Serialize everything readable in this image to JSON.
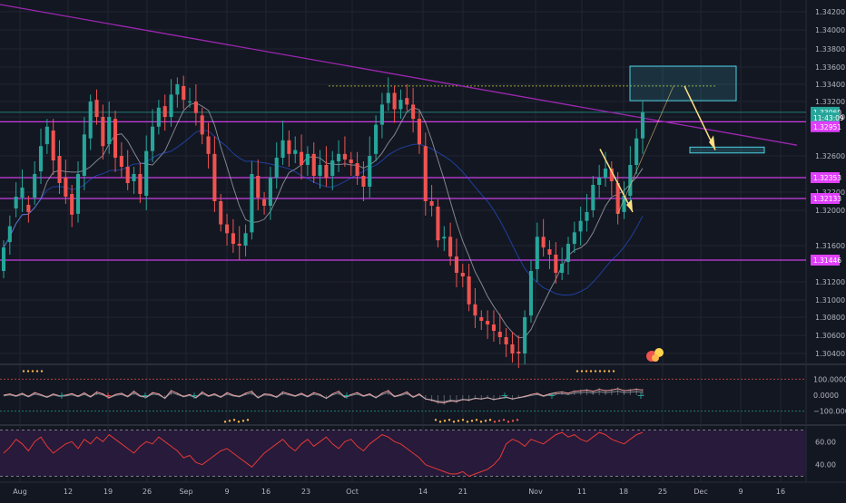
{
  "colors": {
    "bg": "#131722",
    "grid": "#1f2433",
    "up": "#26a69a",
    "down": "#ef5350",
    "text": "#b2b5be",
    "magenta": "#e040fb",
    "trend": "#9c27b0",
    "zone": "#4dd0e1",
    "arrow": "#ffe082",
    "price_tag": "#26a69a",
    "rsi_line": "#e53935",
    "rsi_bg": "#2a1b3d"
  },
  "time_axis": {
    "labels": [
      "Aug",
      "12",
      "19",
      "26",
      "Sep",
      "9",
      "16",
      "23",
      "Oct",
      "14",
      "21",
      "Nov",
      "11",
      "18",
      "25",
      "Dec",
      "9",
      "16"
    ]
  },
  "chart_data": [
    {
      "type": "candlestick",
      "title": "",
      "y_ticks": [
        "1.34200",
        "1.34000",
        "1.33800",
        "1.33600",
        "1.33400",
        "1.33200",
        "1.33000",
        "1.32600",
        "1.32200",
        "1.32000",
        "1.31600",
        "1.31200",
        "1.31000",
        "1.30800",
        "1.30600",
        "1.30400"
      ],
      "ylim": [
        1.3025,
        1.3434
      ],
      "price_labels": [
        {
          "label": "1.33060",
          "value": 1.3306,
          "color": "#26a69a"
        },
        {
          "label": "11:43:09",
          "value": 1.3299,
          "color": "#26a69a"
        },
        {
          "label": "1.32951",
          "value": 1.329,
          "color": "#e040fb"
        },
        {
          "label": "1.32353",
          "value": 1.3236,
          "color": "#e040fb"
        },
        {
          "label": "1.32133",
          "value": 1.3213,
          "color": "#e040fb"
        },
        {
          "label": "1.31446",
          "value": 1.3144,
          "color": "#e040fb"
        }
      ],
      "horizontal_levels": [
        1.3306,
        1.3295,
        1.3236,
        1.3213,
        1.3144
      ],
      "resistance_zone": {
        "price_top": 1.3361,
        "price_bottom": 1.3321
      },
      "target_zone": {
        "price_top": 1.3269,
        "price_bottom": 1.3263
      },
      "series": [
        {
          "name": "",
          "values": [
            1.3158,
            1.3182,
            1.3215,
            1.3225,
            1.3198,
            1.324,
            1.327,
            1.329,
            1.3255,
            1.323,
            1.3215,
            1.3195,
            1.324,
            1.3282,
            1.332,
            1.33,
            1.327,
            1.33,
            1.3258,
            1.3248,
            1.323,
            1.324,
            1.3218,
            1.3265,
            1.329,
            1.3312,
            1.33,
            1.3328,
            1.334,
            1.3322,
            1.332,
            1.3305,
            1.3282,
            1.3262,
            1.321,
            1.3184,
            1.3174,
            1.3162,
            1.316,
            1.3174,
            1.324,
            1.3214,
            1.3205,
            1.3236,
            1.3258,
            1.3276,
            1.3262,
            1.3266,
            1.325,
            1.3262,
            1.3238,
            1.325,
            1.3236,
            1.3255,
            1.3262,
            1.3256,
            1.3252,
            1.3238,
            1.3226,
            1.326,
            1.3292,
            1.3316,
            1.333,
            1.331,
            1.3322,
            1.3316,
            1.3298,
            1.3272,
            1.321,
            1.3205,
            1.3166,
            1.317,
            1.3148,
            1.313,
            1.3126,
            1.3095,
            1.3082,
            1.3076,
            1.3072,
            1.3065,
            1.3058,
            1.305,
            1.304,
            1.304,
            1.308,
            1.3132,
            1.317,
            1.3158,
            1.315,
            1.313,
            1.314,
            1.3162,
            1.3175,
            1.3188,
            1.3198,
            1.3228,
            1.3236,
            1.3246,
            1.3232,
            1.3196,
            1.3216,
            1.325,
            1.3278,
            1.3306
          ]
        },
        {
          "name": "",
          "values": [
            1.3132,
            1.3164,
            1.3202,
            1.3214,
            1.3206,
            1.3214,
            1.3243,
            1.3272,
            1.3286,
            1.326,
            1.3236,
            1.3218,
            1.3196,
            1.3238,
            1.3278,
            1.3322,
            1.33,
            1.3272,
            1.3298,
            1.326,
            1.3248,
            1.3232,
            1.324,
            1.3216,
            1.3265,
            1.329,
            1.3314,
            1.33,
            1.3328,
            1.3338,
            1.332,
            1.332,
            1.3302,
            1.328,
            1.3262,
            1.321,
            1.3184,
            1.3174,
            1.3162,
            1.316,
            1.3175,
            1.3238,
            1.3212,
            1.3205,
            1.3236,
            1.3258,
            1.3276,
            1.3262,
            1.3264,
            1.325,
            1.3262,
            1.3238,
            1.325,
            1.3238,
            1.3254,
            1.3262,
            1.3256,
            1.3252,
            1.3238,
            1.3226,
            1.3262,
            1.3292,
            1.3318,
            1.333,
            1.331,
            1.3324,
            1.3316,
            1.3298,
            1.327,
            1.321,
            1.3204,
            1.3168,
            1.317,
            1.3148,
            1.313,
            1.3126,
            1.3095,
            1.308,
            1.3076,
            1.3072,
            1.3064,
            1.3058,
            1.305,
            1.3042,
            1.304,
            1.3082,
            1.3134,
            1.317,
            1.3156,
            1.315,
            1.313,
            1.3142,
            1.3162,
            1.3176,
            1.3188,
            1.32,
            1.3228,
            1.3236,
            1.3246,
            1.323,
            1.3198,
            1.3216,
            1.325,
            1.3278
          ]
        }
      ]
    },
    {
      "type": "line",
      "title": "",
      "y_ticks": [
        "100.0000",
        "0.0000",
        "−100.0000"
      ],
      "ylim": [
        -170,
        170
      ],
      "series": [
        {
          "name": "",
          "values": [
            0,
            10,
            -5,
            15,
            -10,
            20,
            5,
            -15,
            10,
            -5,
            0,
            12,
            -8,
            18,
            -12,
            25,
            10,
            -20,
            5,
            15,
            -10,
            30,
            -5,
            -15,
            20,
            10,
            -25,
            35,
            15,
            -10,
            5,
            -20,
            25,
            -5,
            10,
            -15,
            20,
            0,
            -10,
            15,
            30,
            -20,
            10,
            5,
            -15,
            25,
            10,
            -5,
            15,
            -10,
            20,
            5,
            -25,
            10,
            30,
            -15,
            5,
            20,
            -5,
            10,
            -20,
            15,
            35,
            -10,
            5,
            25,
            -15,
            10,
            -30,
            -40,
            -55,
            -60,
            -45,
            -50,
            -35,
            -40,
            -25,
            -30,
            -20,
            -35,
            -25,
            -15,
            -30,
            -20,
            -10,
            5,
            15,
            -5,
            10,
            20,
            25,
            15,
            30,
            35,
            40,
            30,
            45,
            35,
            40,
            50,
            35,
            40,
            45,
            40
          ]
        }
      ]
    },
    {
      "type": "line",
      "title": "",
      "y_ticks": [
        "60.00",
        "40.00"
      ],
      "ylim": [
        28,
        72
      ],
      "series": [
        {
          "name": "",
          "values": [
            50,
            55,
            62,
            58,
            52,
            60,
            64,
            56,
            50,
            54,
            58,
            60,
            54,
            62,
            58,
            64,
            60,
            66,
            62,
            58,
            54,
            50,
            56,
            60,
            58,
            64,
            60,
            56,
            52,
            46,
            48,
            42,
            40,
            44,
            48,
            52,
            54,
            50,
            46,
            42,
            38,
            44,
            50,
            54,
            58,
            62,
            56,
            52,
            58,
            62,
            56,
            60,
            64,
            58,
            54,
            60,
            62,
            56,
            52,
            58,
            62,
            66,
            64,
            60,
            58,
            54,
            50,
            46,
            40,
            38,
            36,
            34,
            32,
            32,
            34,
            30,
            32,
            34,
            36,
            40,
            46,
            58,
            62,
            60,
            56,
            62,
            60,
            58,
            62,
            66,
            68,
            64,
            66,
            62,
            60,
            64,
            68,
            66,
            62,
            60,
            58,
            62,
            66,
            68
          ]
        }
      ]
    }
  ]
}
